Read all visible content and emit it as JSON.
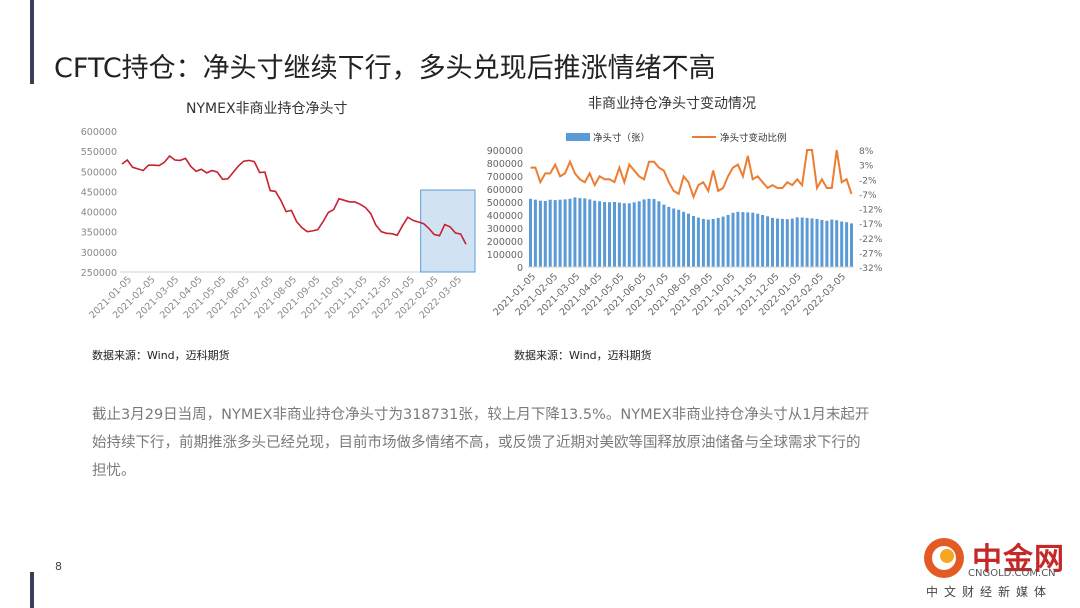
{
  "title": "CFTC持仓：净头寸继续下行，多头兑现后推涨情绪不高",
  "page_number": "8",
  "paragraph": "截止3月29日当周，NYMEX非商业持仓净头寸为318731张，较上月下降13.5%。NYMEX非商业持仓净头寸从1月末起开始持续下行，前期推涨多头已经兑现，目前市场做多情绪不高，或反馈了近期对美欧等国释放原油储备与全球需求下行的担忧。",
  "logo": {
    "name": "中金网",
    "url": "CNGOLD.COM.CN",
    "subtitle": "中文财经新媒体"
  },
  "colors": {
    "accent": "#3a3f5a",
    "line_red": "#c8202f",
    "bar_blue": "#5b9bd5",
    "line_orange": "#ed7d31",
    "highlight": "#bdd7ee"
  },
  "chart_data": [
    {
      "type": "line",
      "title": "NYMEX非商业持仓净头寸",
      "source": "数据来源：Wind，迈科期货",
      "ylim": [
        250000,
        600000
      ],
      "yticks": [
        "600000",
        "550000",
        "500000",
        "450000",
        "400000",
        "350000",
        "300000",
        "250000"
      ],
      "yticks_values": [
        600000,
        550000,
        500000,
        450000,
        400000,
        350000,
        300000,
        250000
      ],
      "xticks": [
        "2021-01-05",
        "2021-02-05",
        "2021-03-05",
        "2021-04-05",
        "2021-05-05",
        "2021-06-05",
        "2021-07-05",
        "2021-08-05",
        "2021-09-05",
        "2021-10-05",
        "2021-11-05",
        "2021-12-05",
        "2022-01-05",
        "2022-02-05",
        "2022-03-05"
      ],
      "series": [
        {
          "values": [
            518000,
            528000,
            510000,
            506000,
            502000,
            515000,
            515000,
            514000,
            522000,
            538000,
            528000,
            527000,
            532000,
            512000,
            500000,
            505000,
            496000,
            502000,
            498000,
            480000,
            481000,
            497000,
            513000,
            525000,
            527000,
            524000,
            497000,
            498000,
            452000,
            450000,
            428000,
            400000,
            403000,
            375000,
            360000,
            350000,
            352000,
            355000,
            375000,
            398000,
            405000,
            432000,
            428000,
            424000,
            424000,
            418000,
            410000,
            395000,
            366000,
            350000,
            346000,
            345000,
            341000,
            365000,
            386000,
            378000,
            374000,
            370000,
            358000,
            343000,
            340000,
            368000,
            362000,
            347000,
            344000,
            319000
          ]
        }
      ],
      "highlight_last_n": 9,
      "grid": false,
      "legend": "none"
    },
    {
      "type": "bar+line",
      "title": "非商业持仓净头寸变动情况",
      "source": "数据来源：Wind，迈科期货",
      "ylim_left": [
        0,
        900000
      ],
      "yticks_left": [
        "900000",
        "800000",
        "700000",
        "600000",
        "500000",
        "400000",
        "300000",
        "200000",
        "100000",
        "0"
      ],
      "ylim_right": [
        -32,
        8
      ],
      "yticks_right": [
        "8%",
        "3%",
        "-2%",
        "-7%",
        "-12%",
        "-17%",
        "-22%",
        "-27%",
        "-32%"
      ],
      "xticks": [
        "2021-01-05",
        "2021-02-05",
        "2021-03-05",
        "2021-04-05",
        "2021-05-05",
        "2021-06-05",
        "2021-07-05",
        "2021-08-05",
        "2021-09-05",
        "2021-10-05",
        "2021-11-05",
        "2021-12-05",
        "2022-01-05",
        "2022-02-05",
        "2022-03-05"
      ],
      "legend": "top",
      "series": [
        {
          "name": "净头寸（张）",
          "kind": "bar",
          "values": [
            525000,
            518000,
            510000,
            508000,
            518000,
            515000,
            518000,
            520000,
            525000,
            535000,
            530000,
            528000,
            520000,
            510000,
            505000,
            500000,
            498000,
            500000,
            495000,
            490000,
            490000,
            498000,
            505000,
            520000,
            525000,
            523000,
            505000,
            480000,
            462000,
            450000,
            440000,
            425000,
            410000,
            392000,
            380000,
            370000,
            365000,
            370000,
            378000,
            388000,
            400000,
            418000,
            425000,
            422000,
            420000,
            418000,
            410000,
            400000,
            390000,
            378000,
            372000,
            370000,
            368000,
            372000,
            382000,
            380000,
            378000,
            374000,
            370000,
            362000,
            355000,
            365000,
            360000,
            350000,
            345000,
            335000
          ]
        },
        {
          "name": "净头寸变动比例",
          "kind": "line",
          "values": [
            2,
            2,
            -3,
            0,
            0,
            3,
            -1,
            0,
            4,
            0,
            -2,
            -3,
            0,
            -4,
            -1,
            -2,
            -2,
            -3,
            2,
            -3,
            3,
            1,
            -1,
            -2,
            4,
            4,
            2,
            1,
            -3,
            -6,
            -7,
            -1,
            -3,
            -8,
            -4,
            -3,
            -6,
            1,
            -6,
            -5,
            -1,
            2,
            3,
            -1,
            6,
            -2,
            -1,
            -3,
            -5,
            -4,
            -5,
            -5,
            -3,
            -4,
            -2,
            -4,
            8,
            8,
            -5,
            -2,
            -5,
            -5,
            8,
            -3,
            -2,
            -7
          ]
        }
      ]
    }
  ]
}
